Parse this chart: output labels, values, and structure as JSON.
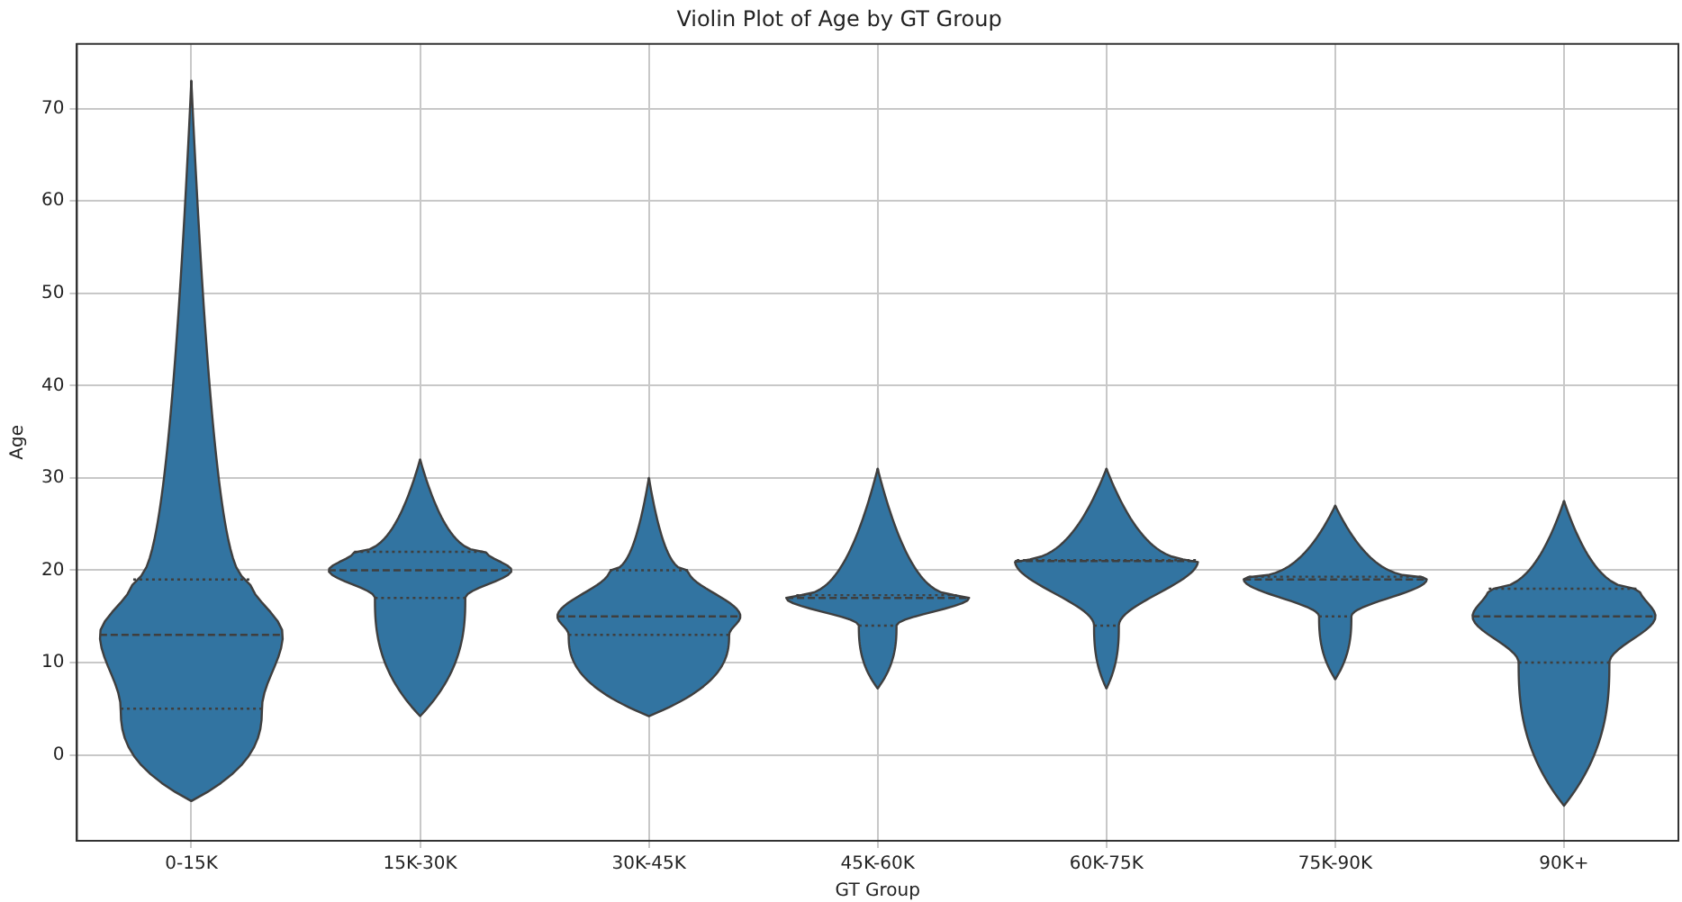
{
  "chart_data": {
    "type": "box",
    "title": "Violin Plot of Age by GT Group",
    "xlabel": "GT Group",
    "ylabel": "Age",
    "categories": [
      "0-15K",
      "15K-30K",
      "30K-45K",
      "45K-60K",
      "60K-75K",
      "75K-90K",
      "90K+"
    ],
    "series": [
      {
        "color": "#3274a1",
        "boxes": [
          {
            "low": -5,
            "q1": 5,
            "median": 13,
            "q3": 19,
            "high": 73
          },
          {
            "low": 4.2,
            "q1": 17,
            "median": 20,
            "q3": 22,
            "high": 32
          },
          {
            "low": 4.2,
            "q1": 13,
            "median": 15,
            "q3": 20,
            "high": 30
          },
          {
            "low": 7.2,
            "q1": 14,
            "median": 17,
            "q3": 17.3,
            "high": 31
          },
          {
            "low": 7.2,
            "q1": 14,
            "median": 21,
            "q3": 21.1,
            "high": 31
          },
          {
            "low": 8.2,
            "q1": 15,
            "median": 19,
            "q3": 19.3,
            "high": 27
          },
          {
            "low": -5.5,
            "q1": 10,
            "median": 15,
            "q3": 18,
            "high": 27.5
          }
        ]
      }
    ],
    "ylim": [
      -9.3,
      77
    ],
    "yticks": [
      0,
      10,
      20,
      30,
      40,
      50,
      60,
      70
    ],
    "grid": true,
    "legend": false
  }
}
